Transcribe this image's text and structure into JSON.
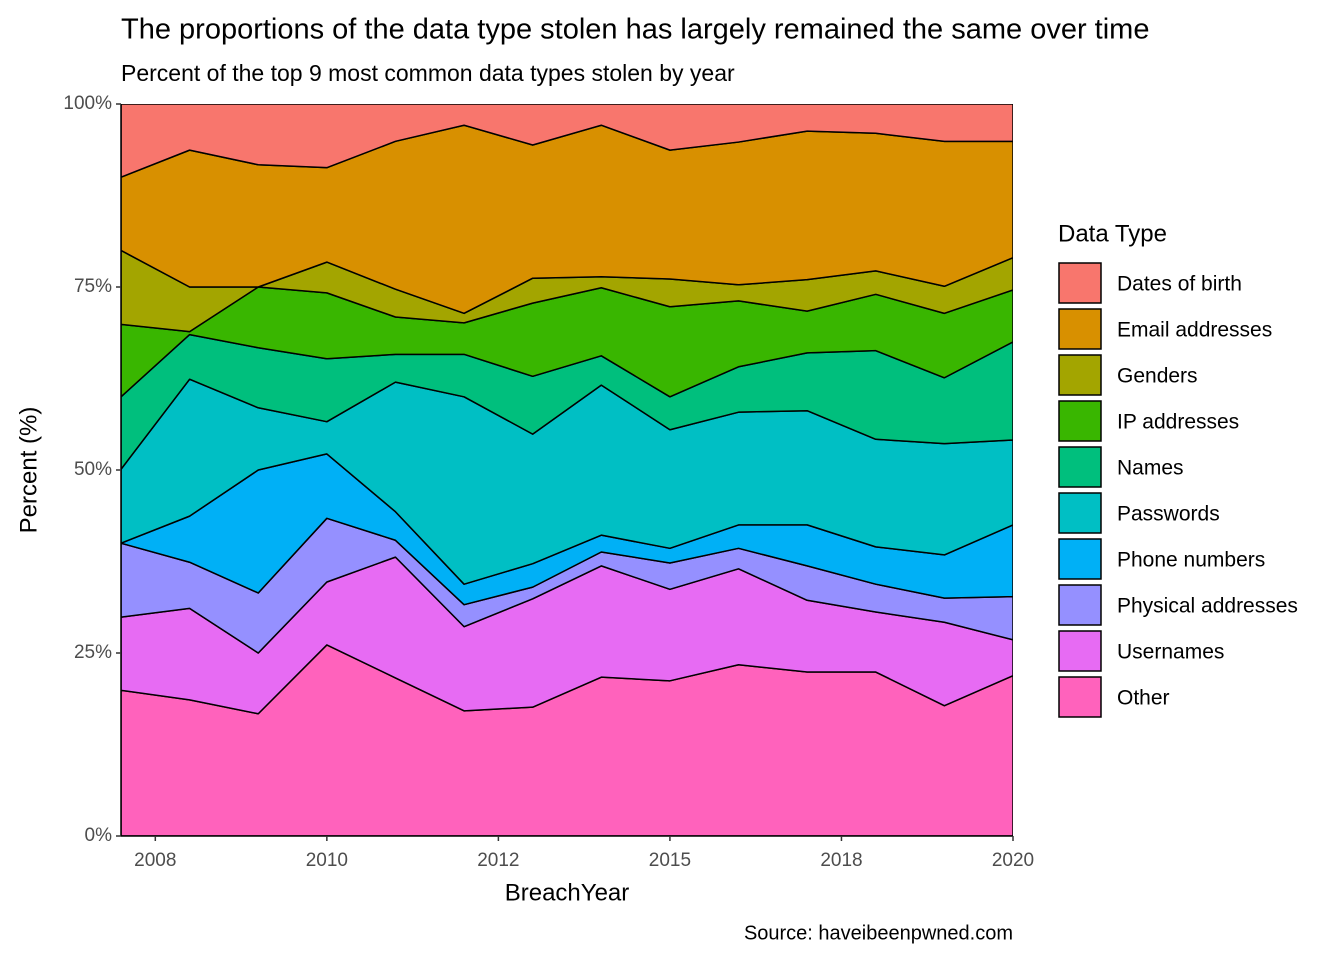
{
  "chart_data": {
    "type": "stacked_area",
    "title": "The proportions of the data type stolen has largely remained the same over time",
    "subtitle": "Percent of the top 9 most common data types stolen by year",
    "x_label": "BreachYear",
    "y_label": "Percent (%)",
    "legend_title": "Data Type",
    "caption": "Source: haveibeenpwned.com",
    "x": [
      2007,
      2008,
      2009,
      2010,
      2011,
      2012,
      2013,
      2014,
      2015,
      2016,
      2017,
      2018,
      2019,
      2020
    ],
    "xlim": [
      2007,
      2020
    ],
    "xticks": [
      {
        "value": 2007.5,
        "label": "2008"
      },
      2010,
      {
        "value": 2012.5,
        "label": "2012"
      },
      2015,
      {
        "value": 2017.5,
        "label": "2018"
      },
      2020
    ],
    "ylim": [
      0,
      100
    ],
    "yticks": [
      {
        "value": 0,
        "label": "0%"
      },
      {
        "value": 25,
        "label": "25%"
      },
      {
        "value": 50,
        "label": "50%"
      },
      {
        "value": 75,
        "label": "75%"
      },
      {
        "value": 100,
        "label": "100%"
      }
    ],
    "legend": "right",
    "series": [
      {
        "name": "Dates of birth",
        "color": "#F8766D",
        "values": [
          10,
          6.3,
          8.3,
          8.7,
          5.1,
          2.9,
          5.6,
          2.9,
          6.3,
          5.2,
          3.7,
          4,
          5.1,
          5.1
        ]
      },
      {
        "name": "Email addresses",
        "color": "#D89000",
        "values": [
          10,
          18.7,
          16.7,
          12.9,
          20.2,
          25.7,
          18.2,
          20.7,
          17.6,
          19.5,
          20.3,
          18.8,
          19.8,
          15.9
        ]
      },
      {
        "name": "Genders",
        "color": "#A3A500",
        "values": [
          10.1,
          6.1,
          0,
          4.2,
          3.8,
          1.3,
          3.4,
          1.5,
          3.8,
          2.2,
          4.3,
          3.2,
          3.7,
          4.4
        ]
      },
      {
        "name": "IP addresses",
        "color": "#39B600",
        "values": [
          9.9,
          0.4,
          8.3,
          9,
          5.1,
          4.3,
          10,
          9.3,
          12.3,
          9,
          5.7,
          7.7,
          8.8,
          7.1
        ]
      },
      {
        "name": "Names",
        "color": "#00BF7D",
        "values": [
          9.9,
          6.1,
          8.2,
          8.6,
          3.8,
          5.8,
          7.9,
          4,
          4.5,
          6.2,
          7.9,
          12.1,
          9,
          13.4
        ]
      },
      {
        "name": "Passwords",
        "color": "#00BFC4",
        "values": [
          10.1,
          18.7,
          8.5,
          4.4,
          17.7,
          25.6,
          17.7,
          20.5,
          16.2,
          15.4,
          15.6,
          14.7,
          15.2,
          11.6
        ]
      },
      {
        "name": "Phone numbers",
        "color": "#00B0F6",
        "values": [
          0,
          6.3,
          16.8,
          8.8,
          3.9,
          2.8,
          3.2,
          2.3,
          2,
          3.2,
          5.6,
          5.1,
          5.9,
          9.8
        ]
      },
      {
        "name": "Physical addresses",
        "color": "#9590FF",
        "values": [
          10.1,
          6.3,
          8.2,
          8.7,
          2.3,
          3,
          1.6,
          1.9,
          3.6,
          2.8,
          4.7,
          3.8,
          3.3,
          5.9
        ]
      },
      {
        "name": "Usernames",
        "color": "#E76BF3",
        "values": [
          10,
          12.5,
          8.3,
          8.6,
          16.5,
          11.5,
          14.8,
          15.2,
          12.5,
          13.1,
          9.8,
          8.2,
          11.4,
          4.9
        ]
      },
      {
        "name": "Other",
        "color": "#FF62BC",
        "values": [
          19.9,
          18.6,
          16.7,
          26.1,
          21.6,
          17.1,
          17.6,
          21.7,
          21.2,
          23.4,
          22.4,
          22.4,
          17.8,
          21.9
        ]
      }
    ]
  }
}
